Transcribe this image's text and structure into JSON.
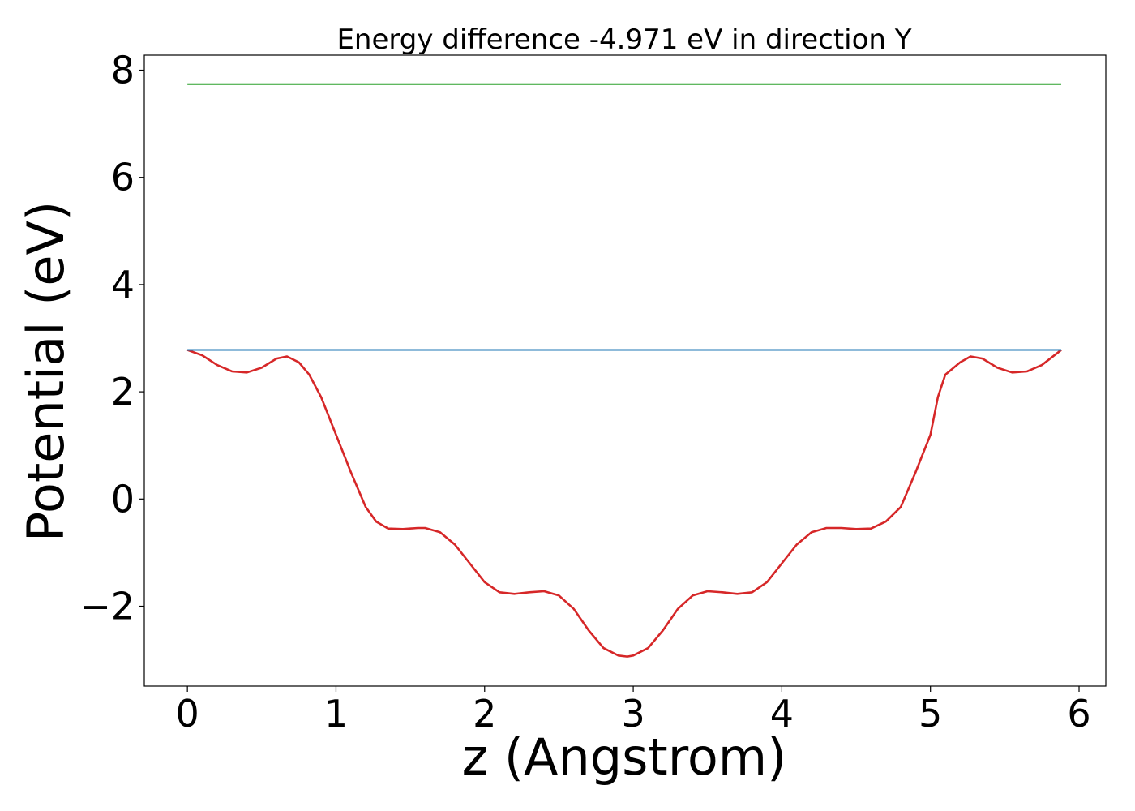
{
  "chart_data": {
    "type": "line",
    "title": "Energy difference -4.971 eV in direction Y",
    "xlabel": "z (Angstrom)",
    "ylabel": "Potential (eV)",
    "xlim": [
      -0.29,
      6.18
    ],
    "ylim": [
      -3.49,
      8.28
    ],
    "x_ticks": [
      0,
      1,
      2,
      3,
      4,
      5,
      6
    ],
    "x_tick_labels": [
      "0",
      "1",
      "2",
      "3",
      "4",
      "5",
      "6"
    ],
    "y_ticks": [
      -2,
      0,
      2,
      4,
      6,
      8
    ],
    "y_tick_labels": [
      "−2",
      "0",
      "2",
      "4",
      "6",
      "8"
    ],
    "grid": false,
    "series": [
      {
        "color": "#d62728",
        "x": [
          0,
          0.1,
          0.2,
          0.3,
          0.4,
          0.5,
          0.6,
          0.67,
          0.75,
          0.82,
          0.9,
          1.0,
          1.1,
          1.2,
          1.27,
          1.35,
          1.45,
          1.55,
          1.6,
          1.7,
          1.8,
          1.9,
          2.0,
          2.1,
          2.2,
          2.3,
          2.4,
          2.5,
          2.6,
          2.7,
          2.8,
          2.9,
          2.96,
          3.0,
          3.1,
          3.2,
          3.3,
          3.4,
          3.5,
          3.6,
          3.7,
          3.8,
          3.9,
          4.0,
          4.1,
          4.2,
          4.3,
          4.4,
          4.5,
          4.6,
          4.7,
          4.8,
          4.9,
          5.0,
          5.05,
          5.1,
          5.2,
          5.27,
          5.35,
          5.45,
          5.55,
          5.65,
          5.75,
          5.88
        ],
        "y": [
          2.78,
          2.68,
          2.5,
          2.38,
          2.36,
          2.45,
          2.62,
          2.66,
          2.55,
          2.32,
          1.9,
          1.2,
          0.5,
          -0.15,
          -0.42,
          -0.55,
          -0.56,
          -0.54,
          -0.54,
          -0.62,
          -0.85,
          -1.2,
          -1.55,
          -1.74,
          -1.77,
          -1.74,
          -1.72,
          -1.8,
          -2.05,
          -2.45,
          -2.78,
          -2.92,
          -2.94,
          -2.92,
          -2.78,
          -2.45,
          -2.05,
          -1.8,
          -1.72,
          -1.74,
          -1.77,
          -1.74,
          -1.55,
          -1.2,
          -0.85,
          -0.62,
          -0.54,
          -0.54,
          -0.56,
          -0.55,
          -0.42,
          -0.15,
          0.5,
          1.2,
          1.9,
          2.32,
          2.55,
          2.66,
          2.62,
          2.45,
          2.36,
          2.38,
          2.5,
          2.78
        ]
      },
      {
        "color": "#1f77b4",
        "x": [
          0,
          5.88
        ],
        "y": [
          2.78,
          2.78
        ]
      },
      {
        "color": "#2ca02c",
        "x": [
          0,
          5.88
        ],
        "y": [
          7.74,
          7.74
        ]
      }
    ]
  }
}
